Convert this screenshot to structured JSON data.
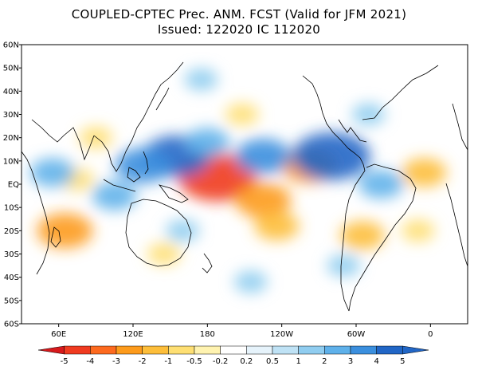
{
  "title": {
    "line1": "COUPLED-CPTEC Prec. ANM. FCST  (Valid for JFM 2021)",
    "line2": "Issued:  122020 IC 112020"
  },
  "map": {
    "lat_labels": [
      "60N",
      "50N",
      "40N",
      "30N",
      "20N",
      "10N",
      "EQ",
      "10S",
      "20S",
      "30S",
      "40S",
      "50S",
      "60S"
    ],
    "lon_labels": [
      "60E",
      "120E",
      "180",
      "120W",
      "60W",
      "0"
    ],
    "lat_range": [
      -60,
      60
    ],
    "lon_range": [
      30,
      390
    ],
    "tick_lons": [
      60,
      120,
      180,
      240,
      300,
      360
    ],
    "tick_lats": [
      60,
      50,
      40,
      30,
      20,
      10,
      0,
      -10,
      -20,
      -30,
      -40,
      -50,
      -60
    ]
  },
  "colorbar": {
    "labels": [
      "-5",
      "-4",
      "-3",
      "-2",
      "-1",
      "-0.5",
      "-0.2",
      "0.2",
      "0.5",
      "1",
      "2",
      "3",
      "4",
      "5"
    ],
    "colors": [
      "#d7191c",
      "#f03b20",
      "#fd6a1f",
      "#fd9b1c",
      "#fdbe3a",
      "#fedf73",
      "#fff3b0",
      "#ffffff",
      "#e6f3fb",
      "#bfe2f5",
      "#90cdf0",
      "#5fb1ea",
      "#3b8fde",
      "#2166c6",
      "#2166c6"
    ]
  },
  "chart_data": {
    "type": "heatmap",
    "title": "COUPLED-CPTEC Prec. ANM. FCST  (Valid for JFM 2021)",
    "subtitle": "Issued:  122020 IC 112020",
    "xlabel": "",
    "ylabel": "",
    "x_ticks": [
      "60E",
      "120E",
      "180",
      "120W",
      "60W",
      "0"
    ],
    "y_ticks": [
      "60N",
      "50N",
      "40N",
      "30N",
      "20N",
      "10N",
      "EQ",
      "10S",
      "20S",
      "30S",
      "40S",
      "50S",
      "60S"
    ],
    "color_levels": [
      -5,
      -4,
      -3,
      -2,
      -1,
      -0.5,
      -0.2,
      0.2,
      0.5,
      1,
      2,
      3,
      4,
      5
    ],
    "anomaly_centers": [
      {
        "lon": 188,
        "lat": 3,
        "value": -5
      },
      {
        "lon": 225,
        "lat": -7,
        "value": -3
      },
      {
        "lon": 236,
        "lat": -18,
        "value": -2
      },
      {
        "lon": 262,
        "lat": 8,
        "value": -3
      },
      {
        "lon": 208,
        "lat": 30,
        "value": -1
      },
      {
        "lon": 305,
        "lat": -22,
        "value": -2
      },
      {
        "lon": 355,
        "lat": 5,
        "value": -2
      },
      {
        "lon": 90,
        "lat": 20,
        "value": -1
      },
      {
        "lon": 65,
        "lat": -20,
        "value": -3
      },
      {
        "lon": 75,
        "lat": 2,
        "value": -1
      },
      {
        "lon": 145,
        "lat": -30,
        "value": -1
      },
      {
        "lon": 350,
        "lat": -20,
        "value": -1
      },
      {
        "lon": 155,
        "lat": 12,
        "value": 4
      },
      {
        "lon": 128,
        "lat": 8,
        "value": 3
      },
      {
        "lon": 180,
        "lat": 18,
        "value": 2
      },
      {
        "lon": 225,
        "lat": 12,
        "value": 3
      },
      {
        "lon": 280,
        "lat": 12,
        "value": 5
      },
      {
        "lon": 105,
        "lat": -5,
        "value": 2
      },
      {
        "lon": 320,
        "lat": 0,
        "value": 2
      },
      {
        "lon": 55,
        "lat": 5,
        "value": 2
      },
      {
        "lon": 160,
        "lat": -20,
        "value": 1
      },
      {
        "lon": 215,
        "lat": -42,
        "value": 1
      },
      {
        "lon": 290,
        "lat": -35,
        "value": 1
      },
      {
        "lon": 310,
        "lat": 30,
        "value": 1
      },
      {
        "lon": 175,
        "lat": 45,
        "value": 1
      }
    ]
  }
}
